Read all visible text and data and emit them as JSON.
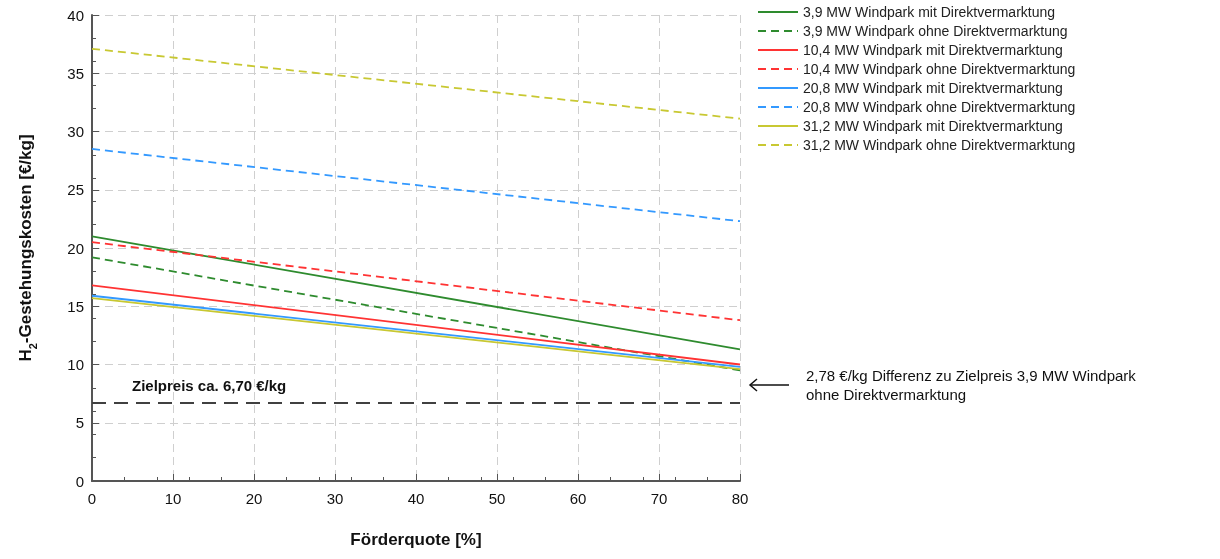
{
  "chart_data": {
    "type": "line",
    "xlabel": "Förderquote [%]",
    "ylabel": "H$_{2}$-Gestehungskosten [€/kg]",
    "x": [
      0,
      80
    ],
    "series": [
      {
        "name": "3,9 MW Windpark mit Direktvermarktung",
        "color": "#2e8b2e",
        "values": [
          21.0,
          11.3
        ],
        "line_style": "solid"
      },
      {
        "name": "3,9 MW Windpark ohne Direktvermarktung",
        "color": "#2e8b2e",
        "values": [
          19.2,
          9.5
        ],
        "line_style": "dashed"
      },
      {
        "name": "10,4 MW Windpark mit Direktvermarktung",
        "color": "#ff3333",
        "values": [
          16.8,
          10.0
        ],
        "line_style": "solid"
      },
      {
        "name": "10,4 MW Windpark ohne Direktvermarktung",
        "color": "#ff3333",
        "values": [
          20.5,
          13.8
        ],
        "line_style": "dashed"
      },
      {
        "name": "20,8 MW Windpark mit Direktvermarktung",
        "color": "#3399ff",
        "values": [
          15.9,
          9.8
        ],
        "line_style": "solid"
      },
      {
        "name": "20,8 MW Windpark ohne Direktvermarktung",
        "color": "#3399ff",
        "values": [
          28.5,
          22.3
        ],
        "line_style": "dashed"
      },
      {
        "name": "31,2 MW Windpark mit Direktvermarktung",
        "color": "#c8c832",
        "values": [
          15.7,
          9.6
        ],
        "line_style": "solid"
      },
      {
        "name": "31,2 MW Windpark ohne Direktvermarktung",
        "color": "#c8c832",
        "values": [
          37.1,
          31.1
        ],
        "line_style": "dashed"
      }
    ],
    "xlim": [
      0,
      80
    ],
    "xticks": [
      0,
      10,
      20,
      30,
      40,
      50,
      60,
      70,
      80
    ],
    "ylim": [
      0,
      40
    ],
    "yticks": [
      0,
      5,
      10,
      15,
      20,
      25,
      30,
      35,
      40
    ],
    "grid": true,
    "legend": "top right",
    "marker": "none",
    "ref_lines": [
      {
        "axis": "y",
        "value": 6.7,
        "label": "Zielpreis ca. 6,70 €/kg",
        "color": "#404040",
        "line_style": "dashed"
      }
    ],
    "annotations": [
      "2,78 €/kg Differenz zu Zielpreis 3,9 MW Windpark ohne Direktvermarktung"
    ]
  }
}
